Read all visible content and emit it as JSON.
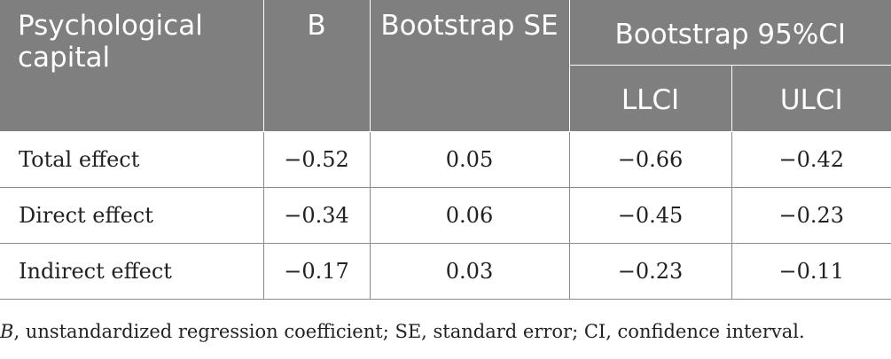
{
  "table": {
    "headers": {
      "row_label": "Psychological capital",
      "b": "B",
      "se": "Bootstrap SE",
      "ci_group": "Bootstrap 95%CI",
      "llci": "LLCI",
      "ulci": "ULCI"
    },
    "rows": [
      {
        "label": "Total effect",
        "b": "−0.52",
        "se": "0.05",
        "llci": "−0.66",
        "ulci": "−0.42"
      },
      {
        "label": "Direct effect",
        "b": "−0.34",
        "se": "0.06",
        "llci": "−0.45",
        "ulci": "−0.23"
      },
      {
        "label": "Indirect effect",
        "b": "−0.17",
        "se": "0.03",
        "llci": "−0.23",
        "ulci": "−0.11"
      }
    ]
  },
  "footnote": {
    "symbol": "B",
    "text": ", unstandardized regression coefficient; SE, standard error; CI, confidence interval."
  }
}
